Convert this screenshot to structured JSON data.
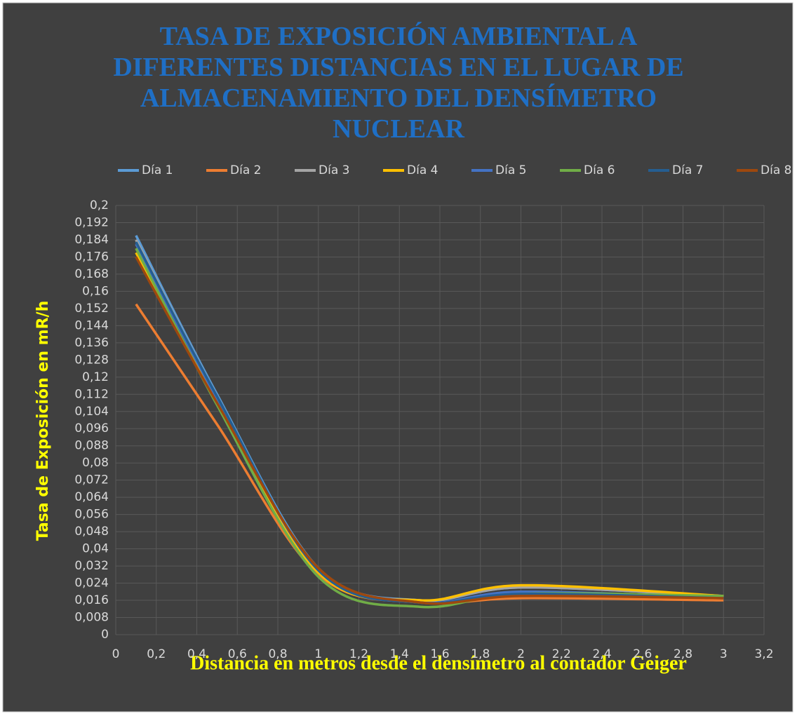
{
  "chart_data": {
    "type": "line",
    "title": "TASA DE EXPOSICIÓN AMBIENTAL A DIFERENTES DISTANCIAS EN EL LUGAR DE ALMACENAMIENTO DEL DENSÍMETRO NUCLEAR",
    "x_label": "Distancia en metros desde el densímetro al contador Geiger",
    "y_label": "Tasa de Exposición en mR/h",
    "x": [
      0.1,
      0.5,
      1,
      1.5,
      2,
      3
    ],
    "series": [
      {
        "name": "Día 1",
        "color": "#5b9bd5",
        "values": [
          0.186,
          0.112,
          0.031,
          0.016,
          0.022,
          0.018
        ]
      },
      {
        "name": "Día 2",
        "color": "#ed7d31",
        "values": [
          0.154,
          0.098,
          0.028,
          0.015,
          0.017,
          0.016
        ]
      },
      {
        "name": "Día 3",
        "color": "#a5a5a5",
        "values": [
          0.184,
          0.111,
          0.03,
          0.016,
          0.022,
          0.018
        ]
      },
      {
        "name": "Día 4",
        "color": "#ffc000",
        "values": [
          0.178,
          0.108,
          0.029,
          0.016,
          0.023,
          0.018
        ]
      },
      {
        "name": "Día 5",
        "color": "#4472c4",
        "values": [
          0.182,
          0.11,
          0.03,
          0.015,
          0.02,
          0.017
        ]
      },
      {
        "name": "Día 6",
        "color": "#70ad47",
        "values": [
          0.18,
          0.107,
          0.027,
          0.013,
          0.019,
          0.018
        ]
      },
      {
        "name": "Día 7",
        "color": "#255e91",
        "values": [
          0.183,
          0.111,
          0.03,
          0.015,
          0.019,
          0.017
        ]
      },
      {
        "name": "Día 8",
        "color": "#9e480e",
        "values": [
          0.176,
          0.108,
          0.031,
          0.015,
          0.018,
          0.017
        ]
      }
    ],
    "xlim": [
      0,
      3.2
    ],
    "xticks": [
      0,
      {
        "value": 0.2,
        "label": "0,2"
      },
      {
        "value": 0.4,
        "label": "0,4"
      },
      {
        "value": 0.6,
        "label": "0,6"
      },
      {
        "value": 0.8,
        "label": "0,8"
      },
      1,
      {
        "value": 1.2,
        "label": "1,2"
      },
      {
        "value": 1.4,
        "label": "1,4"
      },
      {
        "value": 1.6,
        "label": "1,6"
      },
      {
        "value": 1.8,
        "label": "1,8"
      },
      2,
      {
        "value": 2.2,
        "label": "2,2"
      },
      {
        "value": 2.4,
        "label": "2,4"
      },
      {
        "value": 2.6,
        "label": "2,6"
      },
      {
        "value": 2.8,
        "label": "2,8"
      },
      3,
      {
        "value": 3.2,
        "label": "3,2"
      }
    ],
    "ylim": [
      0,
      0.2
    ],
    "yticks": [
      0,
      {
        "value": 0.008,
        "label": "0,008"
      },
      {
        "value": 0.016,
        "label": "0,016"
      },
      {
        "value": 0.024,
        "label": "0,024"
      },
      {
        "value": 0.032,
        "label": "0,032"
      },
      {
        "value": 0.04,
        "label": "0,04"
      },
      {
        "value": 0.048,
        "label": "0,048"
      },
      {
        "value": 0.056,
        "label": "0,056"
      },
      {
        "value": 0.064,
        "label": "0,064"
      },
      {
        "value": 0.072,
        "label": "0,072"
      },
      {
        "value": 0.08,
        "label": "0,08"
      },
      {
        "value": 0.088,
        "label": "0,088"
      },
      {
        "value": 0.096,
        "label": "0,096"
      },
      {
        "value": 0.104,
        "label": "0,104"
      },
      {
        "value": 0.112,
        "label": "0,112"
      },
      {
        "value": 0.12,
        "label": "0,12"
      },
      {
        "value": 0.128,
        "label": "0,128"
      },
      {
        "value": 0.136,
        "label": "0,136"
      },
      {
        "value": 0.144,
        "label": "0,144"
      },
      {
        "value": 0.152,
        "label": "0,152"
      },
      {
        "value": 0.16,
        "label": "0,16"
      },
      {
        "value": 0.168,
        "label": "0,168"
      },
      {
        "value": 0.176,
        "label": "0,176"
      },
      {
        "value": 0.184,
        "label": "0,184"
      },
      {
        "value": 0.192,
        "label": "0,192"
      },
      {
        "value": 0.2,
        "label": "0,2"
      }
    ],
    "grid": true,
    "legend": "top"
  }
}
